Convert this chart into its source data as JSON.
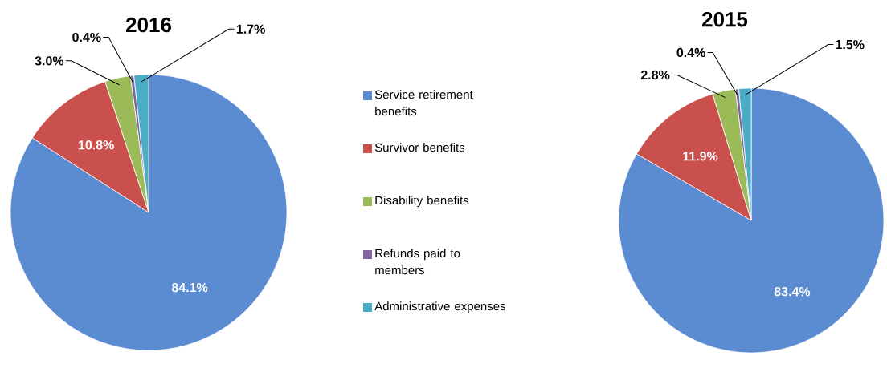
{
  "chart_data": [
    {
      "type": "pie",
      "title": "2016",
      "legend": "right",
      "categories": [
        "Service retirement benefits",
        "Survivor benefits",
        "Disability benefits",
        "Refunds paid to members",
        "Administrative expenses"
      ],
      "values": [
        84.1,
        10.8,
        3.0,
        0.4,
        1.7
      ],
      "value_labels": [
        "84.1%",
        "10.8%",
        "3.0%",
        "0.4%",
        "1.7%"
      ],
      "colors": [
        "#5b8bd0",
        "#c9504d",
        "#9bbb59",
        "#8064a2",
        "#4bacc6"
      ]
    },
    {
      "type": "pie",
      "title": "2015",
      "categories": [
        null,
        null,
        null,
        null,
        null
      ],
      "values": [
        83.4,
        11.9,
        2.8,
        0.4,
        1.5
      ],
      "value_labels": [
        "83.4%",
        "11.9%",
        "2.8%",
        "0.4%",
        "1.5%"
      ],
      "colors": [
        "#5b8bd0",
        "#c9504d",
        "#9bbb59",
        "#8064a2",
        "#4bacc6"
      ]
    }
  ]
}
